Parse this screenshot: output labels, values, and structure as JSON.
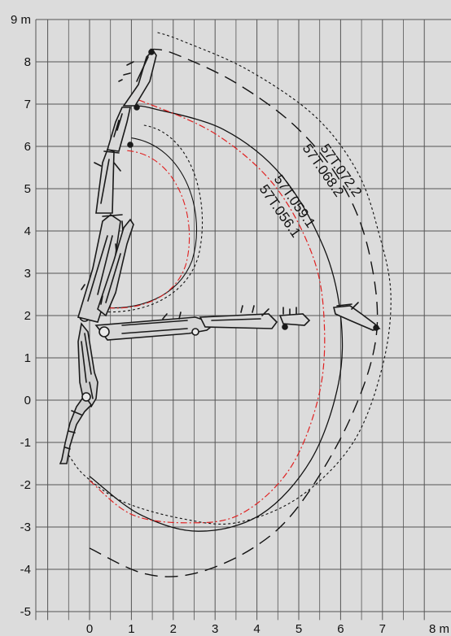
{
  "diagram": {
    "title": "",
    "x_axis": {
      "range": [
        -1.0,
        8.0
      ],
      "ticks": [
        0,
        1,
        2,
        3,
        4,
        5,
        6,
        7,
        8
      ],
      "tick_labels": [
        "0",
        "1",
        "2",
        "3",
        "4",
        "5",
        "6",
        "7",
        "8 m"
      ]
    },
    "y_axis": {
      "range": [
        -5.3,
        9.3
      ],
      "ticks": [
        -5,
        -4,
        -3,
        -2,
        -1,
        0,
        1,
        2,
        3,
        4,
        5,
        6,
        7,
        8,
        9
      ],
      "tick_labels": [
        "-5",
        "-4",
        "-3",
        "-2",
        "-1",
        "0",
        "1",
        "2",
        "3",
        "4",
        "5",
        "6",
        "7",
        "8",
        "9 m"
      ]
    },
    "grid": true,
    "colors": {
      "background": "#dcdcdc",
      "grid": "#555555",
      "text": "#111111",
      "red_curve": "#e02020",
      "crane": "#1a1a1a"
    },
    "reach_curves": [
      {
        "label": "57T.072.2",
        "style": "fine-dashed",
        "color": "#111111",
        "path": [
          [
            -0.5,
            -1.3
          ],
          [
            -0.1,
            -1.8
          ],
          [
            0.8,
            -2.4
          ],
          [
            2.2,
            -2.8
          ],
          [
            3.5,
            -2.9
          ],
          [
            5.0,
            -2.3
          ],
          [
            6.3,
            -1.0
          ],
          [
            7.0,
            0.8
          ],
          [
            7.2,
            2.5
          ],
          [
            6.9,
            4.0
          ],
          [
            6.4,
            5.4
          ],
          [
            5.4,
            6.7
          ],
          [
            3.8,
            7.8
          ],
          [
            2.2,
            8.5
          ],
          [
            1.6,
            8.7
          ]
        ]
      },
      {
        "label": "57T.068.2",
        "style": "long-dashed",
        "color": "#111111",
        "path": [
          [
            0,
            -3.5
          ],
          [
            1.3,
            -4.1
          ],
          [
            2.5,
            -4.1
          ],
          [
            3.9,
            -3.5
          ],
          [
            5.0,
            -2.5
          ],
          [
            6.2,
            -0.5
          ],
          [
            6.85,
            1.5
          ],
          [
            6.7,
            3.4
          ],
          [
            6.1,
            5.0
          ],
          [
            5.0,
            6.4
          ],
          [
            3.5,
            7.5
          ],
          [
            2.0,
            8.2
          ],
          [
            1.45,
            8.3
          ]
        ]
      },
      {
        "label": "57T.059.1",
        "style": "solid",
        "color": "#111111",
        "path": [
          [
            0,
            -1.8
          ],
          [
            1.2,
            -2.7
          ],
          [
            2.6,
            -3.1
          ],
          [
            4.1,
            -2.7
          ],
          [
            5.3,
            -1.4
          ],
          [
            5.95,
            0.4
          ],
          [
            6.0,
            2.0
          ],
          [
            5.6,
            3.6
          ],
          [
            4.6,
            5.3
          ],
          [
            3.2,
            6.4
          ],
          [
            1.5,
            6.9
          ],
          [
            1.1,
            6.95
          ]
        ]
      },
      {
        "label": "57T.056.1",
        "style": "dash-dot",
        "color": "#e02020",
        "path": [
          [
            0,
            -1.9
          ],
          [
            1.0,
            -2.7
          ],
          [
            2.3,
            -2.9
          ],
          [
            3.6,
            -2.7
          ],
          [
            4.8,
            -1.6
          ],
          [
            5.5,
            0.2
          ],
          [
            5.6,
            2.0
          ],
          [
            5.3,
            3.5
          ],
          [
            4.4,
            5.1
          ],
          [
            3.0,
            6.3
          ],
          [
            1.3,
            7.05
          ],
          [
            1.0,
            7.1
          ]
        ]
      }
    ],
    "label_positions_note": ""
  }
}
